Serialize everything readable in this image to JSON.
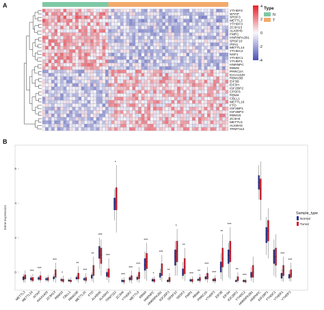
{
  "panels": {
    "a_letter": "A",
    "b_letter": "B"
  },
  "colors": {
    "normal": "#7fc8a6",
    "tumor": "#f2aa6b",
    "heat_low": "#4a52b5",
    "heat_mid": "#f7f7fb",
    "heat_high": "#e8202a",
    "box_normal": "#2b2f8f",
    "box_tumor": "#d5182a"
  },
  "chart_data": [
    {
      "type": "heatmap",
      "title": "",
      "annotation_legend": {
        "title": "Type",
        "entries": [
          {
            "label": "N",
            "color": "#7fc8a6"
          },
          {
            "label": "T",
            "color": "#f2aa6b"
          }
        ]
      },
      "color_legend": {
        "ticks": [
          "4",
          "2",
          "0",
          "-2",
          "-4"
        ]
      },
      "type_bar": {
        "normal_samples": 22,
        "tumor_samples": 40
      },
      "rows": [
        "YTHDF2",
        "WTAP",
        "SRSF3",
        "METTL3",
        "YTHDF3",
        "ZC3H13",
        "ALKBH5",
        "FMR1",
        "HNRNPA2B1",
        "SRSF10",
        "IRIN1",
        "METTL14",
        "YTHDC2",
        "NSF1",
        "YTHDC1",
        "YTHDF1",
        "HNRNPC",
        "RBMX",
        "PRRC2A",
        "KIAA1429",
        "RBM15B",
        "EIF3B",
        "EIF3H",
        "IGF2BP2",
        "CPSF6",
        "RBM4",
        "CBLL1",
        "METTL16",
        "FTO",
        "IGF2BP1",
        "IGF2BP3",
        "RBM15",
        "ZC3H4",
        "METTL5",
        "ALKBH3",
        "TRMT112"
      ],
      "legend_range": [
        -4,
        4
      ]
    },
    {
      "type": "box",
      "xlabel": "",
      "ylabel": "Gene expression",
      "y_ticks": [
        "0",
        "2",
        "4",
        "6"
      ],
      "ylim": [
        -0.8,
        7.2
      ],
      "legend": {
        "title": "Sample_type",
        "entries": [
          {
            "label": "Normal",
            "color": "#2b2f8f"
          },
          {
            "label": "Tumor",
            "color": "#d5182a"
          }
        ]
      },
      "genes": [
        {
          "name": "METTL3",
          "normal": [
            -0.6,
            -0.45,
            -0.35,
            -0.25,
            -0.1
          ],
          "tumor": [
            -0.6,
            -0.4,
            -0.3,
            -0.15,
            0.1
          ],
          "sig": ""
        },
        {
          "name": "METTL14",
          "normal": [
            -0.55,
            -0.45,
            -0.4,
            -0.32,
            -0.2
          ],
          "tumor": [
            -0.6,
            -0.5,
            -0.42,
            -0.3,
            -0.1
          ],
          "sig": "***"
        },
        {
          "name": "WTAP",
          "normal": [
            -0.5,
            -0.42,
            -0.38,
            -0.3,
            -0.2
          ],
          "tumor": [
            -0.6,
            -0.45,
            -0.35,
            -0.2,
            0.05
          ],
          "sig": "***"
        },
        {
          "name": "KIAA1429",
          "normal": [
            -0.55,
            -0.45,
            -0.4,
            -0.35,
            -0.25
          ],
          "tumor": [
            -0.6,
            -0.48,
            -0.4,
            -0.3,
            -0.15
          ],
          "sig": ""
        },
        {
          "name": "ZC3H13",
          "normal": [
            -0.55,
            -0.4,
            -0.35,
            -0.25,
            -0.1
          ],
          "tumor": [
            -0.6,
            -0.3,
            -0.1,
            0.15,
            0.55
          ],
          "sig": "***"
        },
        {
          "name": "RBM15",
          "normal": [
            -0.6,
            -0.5,
            -0.45,
            -0.4,
            -0.3
          ],
          "tumor": [
            -0.65,
            -0.55,
            -0.48,
            -0.4,
            -0.2
          ],
          "sig": "*"
        },
        {
          "name": "CBLL1",
          "normal": [
            -0.6,
            -0.52,
            -0.48,
            -0.44,
            -0.35
          ],
          "tumor": [
            -0.65,
            -0.55,
            -0.5,
            -0.45,
            -0.3
          ],
          "sig": ""
        },
        {
          "name": "RBM15B",
          "normal": [
            -0.5,
            -0.4,
            -0.35,
            -0.28,
            -0.15
          ],
          "tumor": [
            -0.6,
            -0.4,
            -0.25,
            -0.05,
            0.35
          ],
          "sig": "**"
        },
        {
          "name": "METTL16",
          "normal": [
            -0.55,
            -0.45,
            -0.4,
            -0.35,
            -0.25
          ],
          "tumor": [
            -0.65,
            -0.5,
            -0.42,
            -0.3,
            -0.05
          ],
          "sig": "***"
        },
        {
          "name": "FTO",
          "normal": [
            -0.5,
            -0.35,
            -0.25,
            -0.15,
            0.0
          ],
          "tumor": [
            -0.6,
            -0.2,
            0.1,
            0.4,
            0.9
          ],
          "sig": "**"
        },
        {
          "name": "ALKBH5",
          "normal": [
            0.2,
            0.8,
            1.2,
            1.5,
            2.0
          ],
          "tumor": [
            -0.2,
            0.5,
            1.0,
            1.4,
            1.9
          ],
          "sig": "***"
        },
        {
          "name": "ALKBH3",
          "normal": [
            -0.45,
            -0.25,
            -0.15,
            0.0,
            0.2
          ],
          "tumor": [
            -0.6,
            -0.3,
            -0.1,
            0.2,
            0.8
          ],
          "sig": "***"
        },
        {
          "name": "TRMT112",
          "normal": [
            3.0,
            3.6,
            4.0,
            4.3,
            4.8
          ],
          "tumor": [
            2.3,
            3.6,
            4.1,
            4.9,
            6.2
          ],
          "sig": "*"
        },
        {
          "name": "ZC3H4",
          "normal": [
            -0.65,
            -0.55,
            -0.5,
            -0.45,
            -0.35
          ],
          "tumor": [
            -0.7,
            -0.58,
            -0.52,
            -0.45,
            -0.3
          ],
          "sig": "***"
        },
        {
          "name": "YTHDF2",
          "normal": [
            -0.6,
            -0.45,
            -0.38,
            -0.3,
            -0.2
          ],
          "tumor": [
            -0.65,
            -0.45,
            -0.35,
            -0.2,
            0.1
          ],
          "sig": "***"
        },
        {
          "name": "METTL5",
          "normal": [
            -0.55,
            -0.42,
            -0.36,
            -0.28,
            -0.15
          ],
          "tumor": [
            -0.6,
            -0.38,
            -0.2,
            0.0,
            0.3
          ],
          "sig": "***"
        },
        {
          "name": "RBMX",
          "normal": [
            -0.4,
            0.1,
            0.4,
            0.8,
            1.2
          ],
          "tumor": [
            -0.5,
            0.2,
            0.6,
            1.1,
            1.7
          ],
          "sig": "***"
        },
        {
          "name": "HNRNPC",
          "normal": [
            -0.6,
            -0.52,
            -0.46,
            -0.4,
            -0.3
          ],
          "tumor": [
            -0.65,
            -0.55,
            -0.48,
            -0.4,
            -0.25
          ],
          "sig": "*"
        },
        {
          "name": "HNRNPA2B1",
          "normal": [
            -0.45,
            -0.3,
            -0.2,
            -0.05,
            0.2
          ],
          "tumor": [
            -0.55,
            -0.2,
            0.1,
            0.5,
            1.0
          ],
          "sig": "***"
        },
        {
          "name": "IGF2BP3",
          "normal": [
            -0.62,
            -0.55,
            -0.5,
            -0.45,
            -0.38
          ],
          "tumor": [
            -0.66,
            -0.55,
            -0.45,
            -0.3,
            -0.05
          ],
          "sig": "**"
        },
        {
          "name": "SRSF10",
          "normal": [
            -0.2,
            0.4,
            0.9,
            1.3,
            1.8
          ],
          "tumor": [
            -0.2,
            0.6,
            1.2,
            1.8,
            2.5
          ],
          "sig": "*"
        },
        {
          "name": "SRSF3",
          "normal": [
            -0.4,
            -0.2,
            -0.05,
            0.2,
            0.6
          ],
          "tumor": [
            -0.5,
            -0.1,
            0.3,
            0.8,
            1.4
          ],
          "sig": "**"
        },
        {
          "name": "FMR1",
          "normal": [
            -0.6,
            -0.52,
            -0.47,
            -0.42,
            -0.33
          ],
          "tumor": [
            -0.66,
            -0.55,
            -0.48,
            -0.4,
            -0.25
          ],
          "sig": "***"
        },
        {
          "name": "RBM4",
          "normal": [
            -0.55,
            -0.48,
            -0.44,
            -0.4,
            -0.32
          ],
          "tumor": [
            -0.62,
            -0.5,
            -0.42,
            -0.3,
            -0.1
          ],
          "sig": "**"
        },
        {
          "name": "PRRC2A",
          "normal": [
            -0.5,
            -0.4,
            -0.33,
            -0.25,
            -0.12
          ],
          "tumor": [
            -0.6,
            -0.4,
            -0.25,
            -0.05,
            0.3
          ],
          "sig": "***"
        },
        {
          "name": "YTHDF3",
          "normal": [
            -0.6,
            -0.5,
            -0.45,
            -0.4,
            -0.3
          ],
          "tumor": [
            -0.64,
            -0.52,
            -0.45,
            -0.35,
            -0.18
          ],
          "sig": "***"
        },
        {
          "name": "EIF3B",
          "normal": [
            -0.4,
            0.0,
            0.3,
            0.6,
            1.1
          ],
          "tumor": [
            -0.5,
            0.3,
            0.8,
            1.4,
            2.2
          ],
          "sig": "**"
        },
        {
          "name": "EIF3H",
          "normal": [
            -0.3,
            0.5,
            1.0,
            1.3,
            1.7
          ],
          "tumor": [
            -0.4,
            0.6,
            1.2,
            1.8,
            2.6
          ],
          "sig": "***"
        },
        {
          "name": "IGF2BP2",
          "normal": [
            -0.6,
            -0.55,
            -0.5,
            -0.46,
            -0.4
          ],
          "tumor": [
            -0.62,
            -0.5,
            -0.4,
            -0.25,
            0.0
          ],
          "sig": "**"
        },
        {
          "name": "YTHDC2",
          "normal": [
            -0.6,
            -0.55,
            -0.5,
            -0.46,
            -0.4
          ],
          "tumor": [
            -0.66,
            -0.58,
            -0.52,
            -0.46,
            -0.35
          ],
          "sig": "***"
        },
        {
          "name": "HNRNPA2B1B",
          "normal": [
            -0.5,
            -0.3,
            -0.15,
            0.0,
            0.3
          ],
          "tumor": [
            -0.6,
            -0.3,
            0.0,
            0.4,
            0.9
          ],
          "sig": ""
        },
        {
          "name": "HNRNPC2",
          "normal": [
            4.2,
            4.8,
            5.2,
            5.6,
            6.2
          ],
          "tumor": [
            3.0,
            4.2,
            4.8,
            5.4,
            6.4
          ],
          "sig": ""
        },
        {
          "name": "IGF2BP1",
          "normal": [
            1.0,
            1.7,
            2.2,
            2.6,
            3.2
          ],
          "tumor": [
            0.8,
            1.8,
            2.4,
            3.0,
            3.7
          ],
          "sig": ""
        },
        {
          "name": "YTHDC1",
          "normal": [
            -0.2,
            0.5,
            0.9,
            1.3,
            1.9
          ],
          "tumor": [
            -0.3,
            0.4,
            0.9,
            1.4,
            2.2
          ],
          "sig": ""
        },
        {
          "name": "YTHDF1",
          "normal": [
            -0.5,
            -0.35,
            -0.2,
            -0.05,
            0.2
          ],
          "tumor": [
            -0.55,
            -0.2,
            0.1,
            0.4,
            0.9
          ],
          "sig": "***"
        },
        {
          "name": "YTHDF3B",
          "normal": [
            -0.5,
            -0.35,
            -0.25,
            -0.12,
            0.1
          ],
          "tumor": [
            -0.55,
            -0.3,
            -0.1,
            0.15,
            0.55
          ],
          "sig": "***"
        }
      ],
      "x_labels": [
        "METTL3",
        "METTL14",
        "WTAP",
        "KIAA1429",
        "ZC3H13",
        "RBM15",
        "CBLL1",
        "RBM15B",
        "METTL16",
        "FTO",
        "ALKBH5",
        "ALKBH3",
        "TRMT112",
        "ZC3H4",
        "YTHDF2",
        "METTL5",
        "RBMX",
        "HNRNPC",
        "HNRNPA2B1",
        "IGF2BP3",
        "SRSF10",
        "SRSF3",
        "FMR1",
        "RBM4",
        "PRRC2A",
        "YTHDF3",
        "EIF3B",
        "EIF3H",
        "IGF2BP2",
        "YTHDC2",
        "HNRNPA2B1",
        "HNRNPC",
        "IGF2BP1",
        "YTHDC1",
        "YTHDF1",
        "YTHDF3"
      ]
    }
  ]
}
